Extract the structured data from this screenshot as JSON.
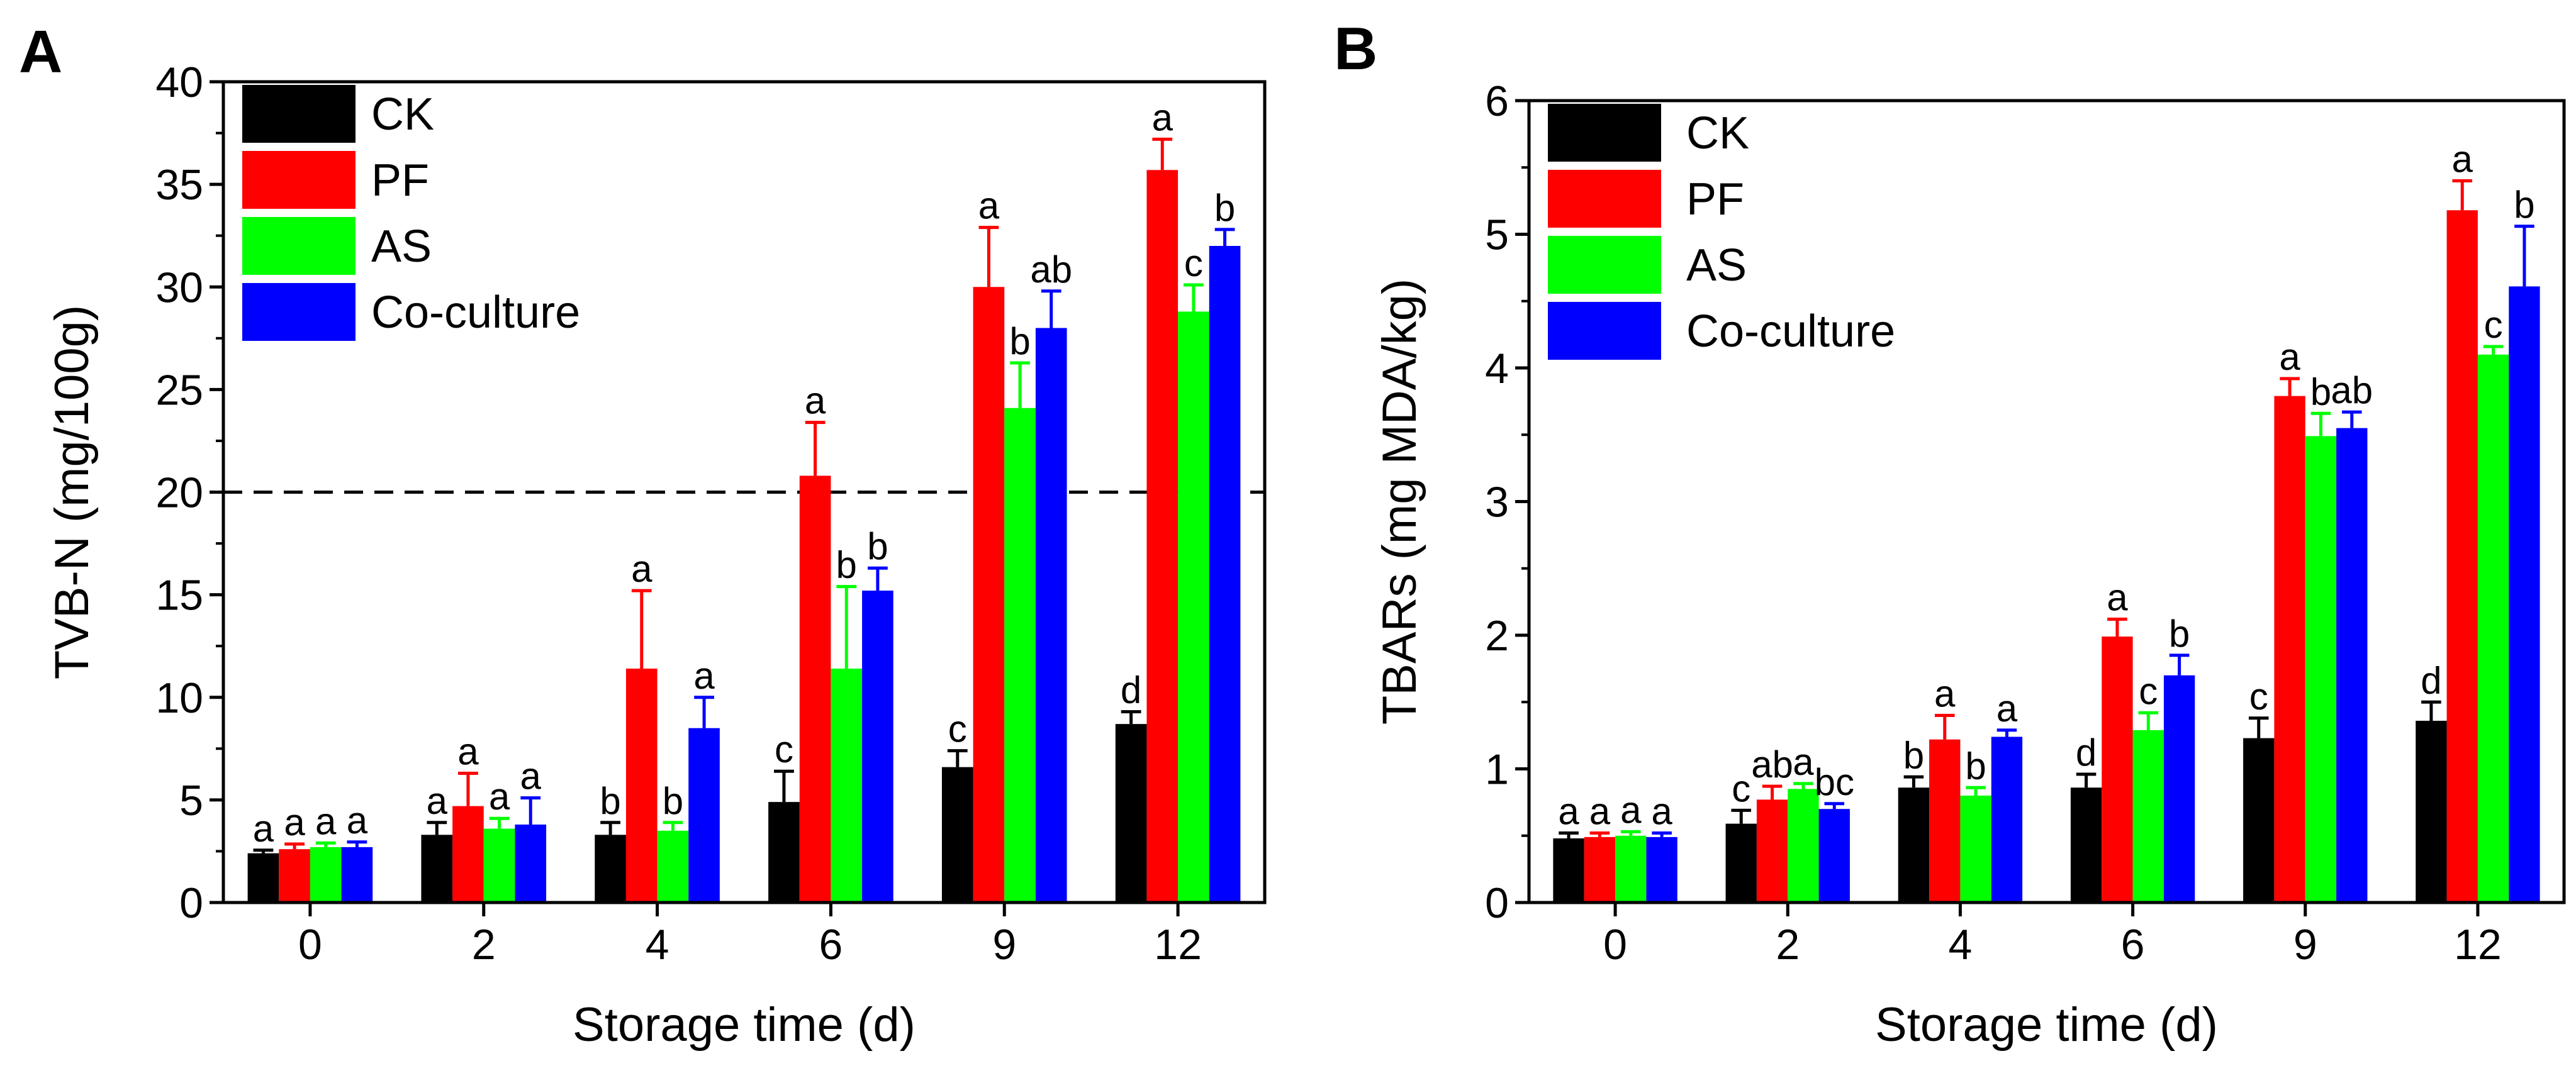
{
  "chart_data": [
    {
      "type": "bar",
      "panel": "A",
      "xlabel": "Storage time (d)",
      "ylabel": "TVB-N (mg/100g)",
      "ylim": [
        0,
        40
      ],
      "yticks": [
        0,
        5,
        10,
        15,
        20,
        25,
        30,
        35,
        40
      ],
      "categories": [
        "0",
        "2",
        "4",
        "6",
        "9",
        "12"
      ],
      "reference_line": {
        "y": 20,
        "style": "dashed"
      },
      "legend_position": "top-left",
      "series": [
        {
          "name": "CK",
          "color": "#000000",
          "values": [
            2.4,
            3.3,
            3.3,
            4.9,
            6.6,
            8.7
          ],
          "errors": [
            0.15,
            0.6,
            0.6,
            1.5,
            0.8,
            0.6
          ],
          "labels": [
            "a",
            "a",
            "b",
            "c",
            "c",
            "d"
          ]
        },
        {
          "name": "PF",
          "color": "#ff0000",
          "values": [
            2.6,
            4.7,
            11.4,
            20.8,
            30.0,
            35.7
          ],
          "errors": [
            0.25,
            1.6,
            3.8,
            2.6,
            2.9,
            1.5
          ],
          "labels": [
            "a",
            "a",
            "a",
            "a",
            "a",
            "a"
          ]
        },
        {
          "name": "AS",
          "color": "#00ff00",
          "values": [
            2.7,
            3.6,
            3.5,
            11.4,
            24.1,
            28.8
          ],
          "errors": [
            0.2,
            0.5,
            0.4,
            4.0,
            2.2,
            1.3
          ],
          "labels": [
            "a",
            "a",
            "b",
            "b",
            "b",
            "c"
          ]
        },
        {
          "name": "Co-culture",
          "color": "#0000ff",
          "values": [
            2.7,
            3.8,
            8.5,
            15.2,
            28.0,
            32.0
          ],
          "errors": [
            0.25,
            1.3,
            1.5,
            1.1,
            1.8,
            0.8
          ],
          "labels": [
            "a",
            "a",
            "a",
            "b",
            "ab",
            "b"
          ]
        }
      ]
    },
    {
      "type": "bar",
      "panel": "B",
      "xlabel": "Storage time (d)",
      "ylabel": "TBARs (mg MDA/kg)",
      "ylim": [
        0,
        6
      ],
      "yticks": [
        0,
        1,
        2,
        3,
        4,
        5,
        6
      ],
      "categories": [
        "0",
        "2",
        "4",
        "6",
        "9",
        "12"
      ],
      "legend_position": "top-left",
      "series": [
        {
          "name": "CK",
          "color": "#000000",
          "values": [
            0.48,
            0.59,
            0.86,
            0.86,
            1.23,
            1.36
          ],
          "errors": [
            0.04,
            0.1,
            0.08,
            0.1,
            0.15,
            0.14
          ],
          "labels": [
            "a",
            "c",
            "b",
            "d",
            "c",
            "d"
          ]
        },
        {
          "name": "PF",
          "color": "#ff0000",
          "values": [
            0.49,
            0.77,
            1.22,
            1.99,
            3.79,
            5.18
          ],
          "errors": [
            0.03,
            0.1,
            0.18,
            0.13,
            0.13,
            0.22
          ],
          "labels": [
            "a",
            "ab",
            "a",
            "a",
            "a",
            "a"
          ]
        },
        {
          "name": "AS",
          "color": "#00ff00",
          "values": [
            0.5,
            0.85,
            0.8,
            1.29,
            3.49,
            4.1
          ],
          "errors": [
            0.03,
            0.04,
            0.06,
            0.13,
            0.17,
            0.06
          ],
          "labels": [
            "a",
            "a",
            "b",
            "c",
            "b",
            "c"
          ]
        },
        {
          "name": "Co-culture",
          "color": "#0000ff",
          "values": [
            0.49,
            0.7,
            1.24,
            1.7,
            3.55,
            4.61
          ],
          "errors": [
            0.03,
            0.04,
            0.05,
            0.15,
            0.12,
            0.45
          ],
          "labels": [
            "a",
            "bc",
            "a",
            "b",
            "ab",
            "b"
          ]
        }
      ]
    }
  ]
}
